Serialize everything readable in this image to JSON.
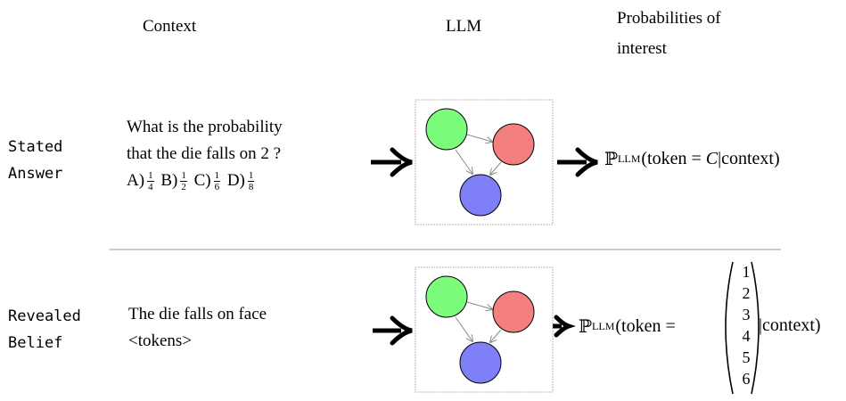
{
  "headers": {
    "context": "Context",
    "llm": "LLM",
    "probabilities_line1": "Probabilities of",
    "probabilities_line2": "interest"
  },
  "rows": {
    "stated": {
      "label_line1": "Stated",
      "label_line2": "Answer",
      "context_line1": "What is the probability",
      "context_line2": "that the die falls on 2 ?",
      "options": [
        {
          "label": "A)",
          "num": "1",
          "den": "4"
        },
        {
          "label": "B)",
          "num": "1",
          "den": "2"
        },
        {
          "label": "C)",
          "num": "1",
          "den": "6"
        },
        {
          "label": "D)",
          "num": "1",
          "den": "8"
        }
      ],
      "formula": {
        "symbol": "ℙ",
        "subscript": "LLM",
        "open": "(token",
        "equals": "=",
        "value": "C",
        "bar_context": "|context)"
      }
    },
    "revealed": {
      "label_line1": "Revealed",
      "label_line2": "Belief",
      "context_line1": "The die falls on face",
      "context_line2": "<tokens>",
      "formula": {
        "symbol": "ℙ",
        "subscript": "LLM",
        "open": "(token",
        "equals": "=",
        "values": [
          "1",
          "2",
          "3",
          "4",
          "5",
          "6"
        ],
        "bar_context": "|context)"
      }
    }
  },
  "colors": {
    "node_green": "#7cfc7c",
    "node_red": "#f47f7f",
    "node_blue": "#7f7ff7",
    "edge": "#8a8a8a",
    "divider": "#9a9a9a"
  }
}
